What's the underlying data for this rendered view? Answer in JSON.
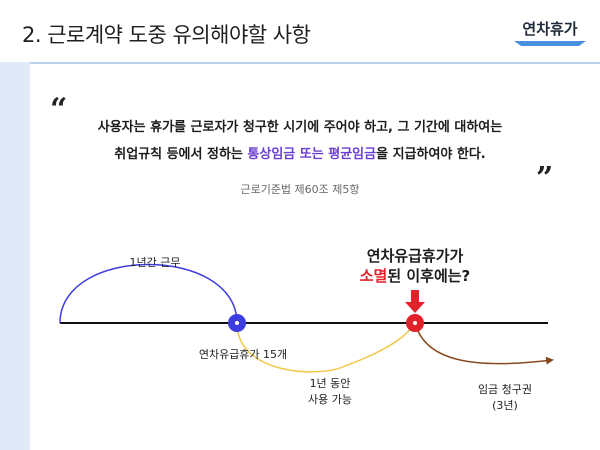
{
  "header": {
    "title": "2. 근로계약 도중 유의해야할 사항",
    "section_tag": "연차휴가"
  },
  "quote": {
    "open_mark": "“",
    "close_mark": "”",
    "line1": "사용자는 휴가를 근로자가 청구한 시기에 주어야 하고, 그 기간에 대하여는",
    "line2_prefix": "취업규칙 등에서 정하는 ",
    "line2_highlight": "통상임금 또는 평균임금",
    "line2_suffix": "을 지급하여야 한다.",
    "source": "근로기준법 제60조 제5항"
  },
  "timeline": {
    "work_label": "1년간 근무",
    "leave_label": "연차유급휴가 15개",
    "use_line1": "1년 동안",
    "use_line2": "사용 가능",
    "question_line1": "연차유급휴가가",
    "question_red": "소멸",
    "question_rest": "된 이후에는?",
    "wage_line1": "임금 청구권",
    "wage_line2": "(3년)"
  },
  "colors": {
    "accent_blue": "#4a8fe0",
    "stripe": "#dfe9f8",
    "highlight_purple": "#6b3fd1",
    "red": "#e0232b",
    "node_blue": "#3d3de0",
    "use_arc": "#f2c84b",
    "wage_arc": "#8a4a1f"
  }
}
